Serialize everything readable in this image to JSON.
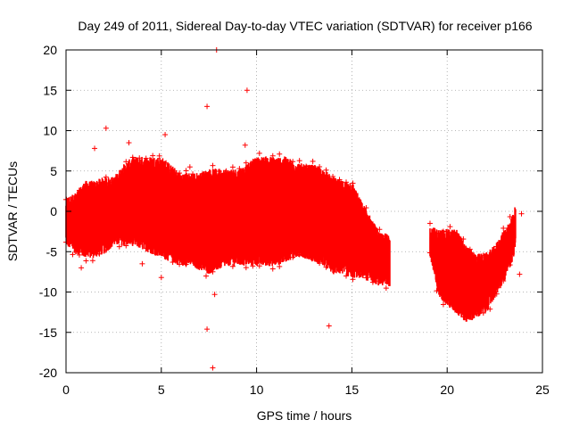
{
  "chart_data": {
    "type": "scatter",
    "title": "Day 249 of 2011, Sidereal Day-to-day VTEC variation (SDTVAR) for receiver p166",
    "xlabel": "GPS time / hours",
    "ylabel": "SDTVAR / TECUs",
    "xlim": [
      0,
      25
    ],
    "ylim": [
      -20,
      20
    ],
    "xticks": [
      0,
      5,
      10,
      15,
      20,
      25
    ],
    "yticks": [
      -20,
      -15,
      -10,
      -5,
      0,
      5,
      10,
      15,
      20
    ],
    "grid": true,
    "marker": "+",
    "color": "#ff0000",
    "series": [
      {
        "name": "SDTVAR",
        "band": [
          [
            0.0,
            -3.5,
            1.0
          ],
          [
            0.5,
            -4.5,
            1.5
          ],
          [
            1.0,
            -5.0,
            3.0
          ],
          [
            1.5,
            -5.0,
            3.0
          ],
          [
            2.0,
            -4.5,
            3.5
          ],
          [
            2.5,
            -3.5,
            3.5
          ],
          [
            3.0,
            -3.5,
            5.0
          ],
          [
            3.5,
            -3.5,
            6.0
          ],
          [
            4.0,
            -4.0,
            6.0
          ],
          [
            4.5,
            -4.5,
            6.0
          ],
          [
            5.0,
            -5.0,
            6.0
          ],
          [
            5.5,
            -5.5,
            5.0
          ],
          [
            6.0,
            -6.0,
            4.0
          ],
          [
            6.5,
            -6.0,
            4.0
          ],
          [
            7.0,
            -6.5,
            4.0
          ],
          [
            7.5,
            -7.0,
            4.5
          ],
          [
            8.0,
            -6.5,
            4.5
          ],
          [
            8.5,
            -6.0,
            4.5
          ],
          [
            9.0,
            -6.0,
            4.5
          ],
          [
            9.5,
            -6.0,
            5.0
          ],
          [
            10.0,
            -6.0,
            6.0
          ],
          [
            10.5,
            -6.0,
            6.0
          ],
          [
            11.0,
            -6.0,
            6.0
          ],
          [
            11.5,
            -5.5,
            6.0
          ],
          [
            12.0,
            -5.0,
            5.5
          ],
          [
            12.5,
            -5.0,
            5.0
          ],
          [
            13.0,
            -5.5,
            5.0
          ],
          [
            13.5,
            -6.0,
            4.5
          ],
          [
            14.0,
            -7.0,
            3.5
          ],
          [
            14.5,
            -7.0,
            3.0
          ],
          [
            15.0,
            -7.5,
            3.0
          ],
          [
            15.5,
            -7.5,
            0.5
          ],
          [
            16.0,
            -8.0,
            -1.5
          ],
          [
            16.5,
            -8.5,
            -3.5
          ],
          [
            17.0,
            -8.5,
            -3.5
          ]
        ],
        "band2": [
          [
            19.1,
            -5.0,
            -2.5
          ],
          [
            19.5,
            -9.5,
            -3.0
          ],
          [
            20.0,
            -11.0,
            -3.0
          ],
          [
            20.5,
            -12.0,
            -3.0
          ],
          [
            21.0,
            -13.0,
            -5.0
          ],
          [
            21.5,
            -12.5,
            -6.0
          ],
          [
            22.0,
            -12.0,
            -6.0
          ],
          [
            22.5,
            -10.0,
            -5.0
          ],
          [
            23.0,
            -8.0,
            -3.0
          ],
          [
            23.5,
            -5.0,
            -1.0
          ],
          [
            23.6,
            -3.0,
            0.5
          ]
        ],
        "outliers": [
          [
            7.9,
            20
          ],
          [
            9.5,
            15
          ],
          [
            7.4,
            13
          ],
          [
            2.1,
            10.3
          ],
          [
            5.2,
            9.5
          ],
          [
            1.5,
            7.8
          ],
          [
            9.4,
            8.2
          ],
          [
            3.3,
            8.5
          ],
          [
            13.8,
            -14.2
          ],
          [
            7.4,
            -14.6
          ],
          [
            7.7,
            -19.4
          ],
          [
            7.8,
            -10.3
          ],
          [
            0.8,
            -7
          ],
          [
            23.9,
            -0.3
          ],
          [
            23.8,
            -7.8
          ],
          [
            4.0,
            -6.5
          ],
          [
            16.8,
            -8.0
          ],
          [
            6.5,
            5.5
          ],
          [
            5.0,
            -8.2
          ]
        ]
      }
    ]
  }
}
